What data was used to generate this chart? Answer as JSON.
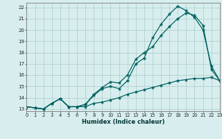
{
  "xlabel": "Humidex (Indice chaleur)",
  "x": [
    0,
    1,
    2,
    3,
    4,
    5,
    6,
    7,
    8,
    9,
    10,
    11,
    12,
    13,
    14,
    15,
    16,
    17,
    18,
    19,
    20,
    21,
    22,
    23
  ],
  "line1": [
    13.2,
    13.1,
    13.0,
    13.5,
    13.9,
    13.2,
    13.2,
    13.4,
    14.3,
    14.9,
    15.4,
    15.3,
    16.0,
    17.4,
    18.0,
    18.5,
    19.5,
    20.3,
    21.0,
    21.5,
    21.3,
    20.4,
    16.5,
    15.5
  ],
  "line2": [
    13.2,
    13.1,
    13.0,
    13.5,
    13.9,
    13.2,
    13.2,
    13.4,
    14.2,
    14.8,
    15.0,
    14.8,
    15.5,
    17.0,
    17.5,
    19.3,
    20.5,
    21.4,
    22.1,
    21.7,
    21.1,
    20.0,
    16.8,
    15.5
  ],
  "line3": [
    13.2,
    13.1,
    13.0,
    13.5,
    13.9,
    13.2,
    13.2,
    13.2,
    13.5,
    13.6,
    13.8,
    14.0,
    14.3,
    14.5,
    14.7,
    14.9,
    15.1,
    15.3,
    15.5,
    15.6,
    15.7,
    15.7,
    15.8,
    15.5
  ],
  "bg_color": "#d8eeee",
  "line_color": "#006060",
  "grid_color": "#aacaca",
  "xlim": [
    0,
    23
  ],
  "ylim": [
    12.8,
    22.4
  ],
  "yticks": [
    13,
    14,
    15,
    16,
    17,
    18,
    19,
    20,
    21,
    22
  ],
  "xticks": [
    0,
    1,
    2,
    3,
    4,
    5,
    6,
    7,
    8,
    9,
    10,
    11,
    12,
    13,
    14,
    15,
    16,
    17,
    18,
    19,
    20,
    21,
    22,
    23
  ]
}
